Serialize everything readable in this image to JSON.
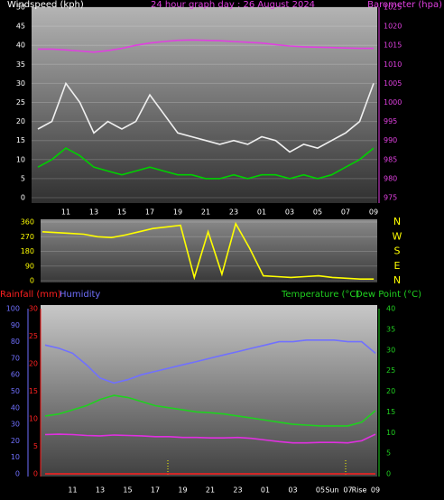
{
  "chart_data": [
    {
      "type": "line",
      "title": "24 hour graph day : 26 August 2024",
      "ylabel": "Windspeed (kph)",
      "y2label": "Barometer (hpa)",
      "categories": [
        null,
        null,
        "11",
        null,
        "13",
        null,
        "15",
        null,
        "17",
        null,
        "19",
        null,
        "21",
        null,
        "23",
        null,
        "01",
        null,
        "03",
        null,
        "05",
        null,
        "07",
        null,
        "09"
      ],
      "ylim": [
        0,
        50
      ],
      "yticks": [
        0,
        5,
        10,
        15,
        20,
        25,
        30,
        35,
        40,
        45,
        50
      ],
      "y2lim": [
        975,
        1025
      ],
      "y2ticks": [
        975,
        980,
        985,
        990,
        995,
        1000,
        1005,
        1010,
        1015,
        1020,
        1025
      ],
      "grid": true,
      "series": [
        {
          "color": "#f0f0f0",
          "values": [
            18,
            20,
            30,
            25,
            17,
            20,
            18,
            20,
            27,
            22,
            17,
            16,
            15,
            14,
            15,
            14,
            16,
            15,
            12,
            14,
            13,
            15,
            17,
            20,
            30
          ]
        },
        {
          "color": "#00d000",
          "values": [
            8,
            10,
            13,
            11,
            8,
            7,
            6,
            7,
            8,
            7,
            6,
            6,
            5,
            5,
            6,
            5,
            6,
            6,
            5,
            6,
            5,
            6,
            8,
            10,
            13
          ]
        },
        {
          "color": "#e040e0",
          "axis": "y2",
          "values": [
            1014,
            1014,
            1013.8,
            1013.5,
            1013.2,
            1013.6,
            1014.2,
            1015,
            1015.6,
            1016,
            1016.3,
            1016.4,
            1016.3,
            1016.2,
            1016,
            1015.8,
            1015.6,
            1015.2,
            1014.8,
            1014.6,
            1014.5,
            1014.4,
            1014.3,
            1014.2,
            1014.2
          ]
        }
      ]
    },
    {
      "type": "line",
      "ylim": [
        0,
        360
      ],
      "yticks": [
        0,
        90,
        180,
        270,
        360
      ],
      "y2lim": [
        0,
        360
      ],
      "y2ticks": [
        {
          "value": 360,
          "label": "N"
        },
        {
          "value": 270,
          "label": "W"
        },
        {
          "value": 180,
          "label": "S"
        },
        {
          "value": 90,
          "label": "E"
        },
        {
          "value": 0,
          "label": "N"
        }
      ],
      "series": [
        {
          "color": "#ffff00",
          "values": [
            300,
            295,
            290,
            285,
            270,
            265,
            280,
            300,
            320,
            330,
            340,
            20,
            300,
            40,
            350,
            200,
            30,
            25,
            20,
            25,
            30,
            20,
            15,
            10,
            10
          ]
        }
      ]
    },
    {
      "type": "line",
      "categories": [
        null,
        null,
        "11",
        null,
        "13",
        null,
        "15",
        null,
        "17",
        null,
        "19",
        null,
        "21",
        null,
        "23",
        null,
        "01",
        null,
        "03",
        null,
        "05",
        null,
        "07",
        null,
        "09"
      ],
      "annotations": [
        "Sun",
        "Rise"
      ],
      "ylim": [
        0,
        100
      ],
      "yticks": [
        0,
        10,
        20,
        30,
        40,
        50,
        60,
        70,
        80,
        90,
        100
      ],
      "rain_ylim": [
        0,
        30
      ],
      "rain_yticks": [
        0,
        5,
        10,
        15,
        20,
        25,
        30
      ],
      "y2lim": [
        0,
        40
      ],
      "y2ticks": [
        0,
        5,
        10,
        15,
        20,
        25,
        30,
        35,
        40
      ],
      "series": [
        {
          "name": "Rainfall (mm)",
          "color": "#ff2020",
          "axis": "rain",
          "values": [
            0,
            0,
            0,
            0,
            0,
            0,
            0,
            0,
            0,
            0,
            0,
            0,
            0,
            0,
            0,
            0,
            0,
            0,
            0,
            0,
            0,
            0,
            0,
            0,
            0
          ]
        },
        {
          "name": "Humidity",
          "color": "#7070ff",
          "values": [
            78,
            76,
            73,
            66,
            58,
            55,
            57,
            60,
            62,
            64,
            66,
            68,
            70,
            72,
            74,
            76,
            78,
            80,
            80,
            81,
            81,
            81,
            80,
            80,
            73
          ]
        },
        {
          "name": "Temperature (°C)",
          "color": "#20d020",
          "axis": "y2",
          "values": [
            14,
            14.5,
            15.5,
            16.5,
            18,
            19,
            18.5,
            17.5,
            16.5,
            16,
            15.5,
            15,
            14.8,
            14.5,
            14,
            13.5,
            13,
            12.5,
            12,
            11.8,
            11.6,
            11.6,
            11.6,
            12.5,
            15.3
          ]
        },
        {
          "name": "Dew Point (°C)",
          "color": "#e030e0",
          "axis": "y2",
          "values": [
            9.5,
            9.6,
            9.5,
            9.3,
            9.2,
            9.4,
            9.3,
            9.2,
            9,
            9,
            8.8,
            8.8,
            8.7,
            8.7,
            8.8,
            8.6,
            8.2,
            7.8,
            7.5,
            7.5,
            7.6,
            7.6,
            7.5,
            8,
            9.6
          ]
        }
      ]
    }
  ]
}
